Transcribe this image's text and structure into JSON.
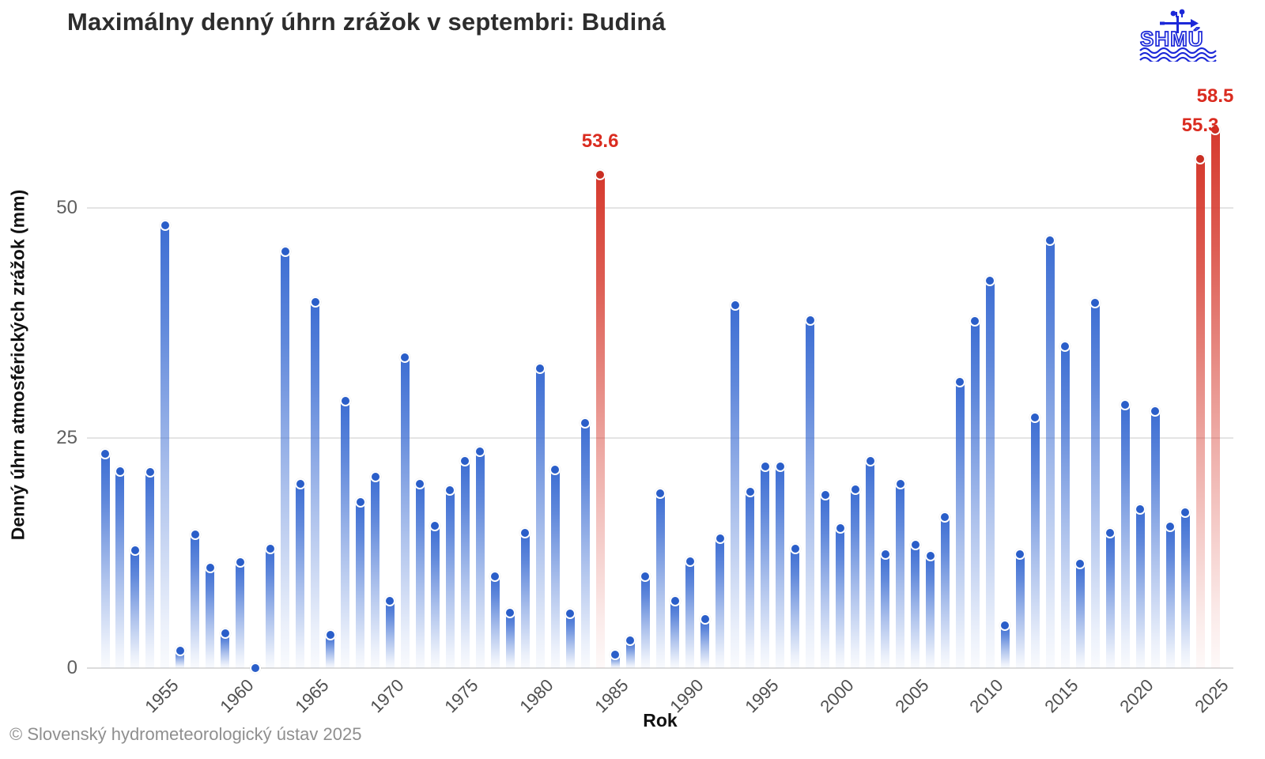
{
  "title": "Maximálny denný úhrn zrážok v septembri: Budiná",
  "footer": "© Slovenský hydrometeorologický ústav 2025",
  "logo": {
    "text": "SHMÚ"
  },
  "y_axis": {
    "title": "Denný úhrn atmosférických zrážok (mm)"
  },
  "x_axis": {
    "title": "Rok"
  },
  "colors": {
    "bar_blue": "#3d6ed3",
    "dot_blue": "#2a5ec9",
    "bar_red": "#d63a2e",
    "dot_red": "#c92e22",
    "annotation_red": "#da2c20",
    "gridline": "#e4e4e4",
    "tick_text": "#4f4f4f",
    "logo_blue": "#1c28d8"
  },
  "chart_data": {
    "type": "bar",
    "title": "Maximálny denný úhrn zrážok v septembri: Budiná",
    "xlabel": "Rok",
    "ylabel": "Denný úhrn atmosférických zrážok (mm)",
    "grid": "horizontal",
    "ylim": [
      0,
      62
    ],
    "yticks": [
      0,
      25,
      50
    ],
    "xticks": [
      1955,
      1960,
      1965,
      1970,
      1975,
      1980,
      1985,
      1990,
      1995,
      2000,
      2005,
      2010,
      2015,
      2020,
      2025
    ],
    "x": [
      1951,
      1952,
      1953,
      1954,
      1955,
      1956,
      1957,
      1958,
      1959,
      1960,
      1961,
      1962,
      1963,
      1964,
      1965,
      1966,
      1967,
      1968,
      1969,
      1970,
      1971,
      1972,
      1973,
      1974,
      1975,
      1976,
      1977,
      1978,
      1979,
      1980,
      1981,
      1982,
      1983,
      1984,
      1985,
      1986,
      1987,
      1988,
      1989,
      1990,
      1991,
      1992,
      1993,
      1994,
      1995,
      1996,
      1997,
      1998,
      1999,
      2000,
      2001,
      2002,
      2003,
      2004,
      2005,
      2006,
      2007,
      2008,
      2009,
      2010,
      2011,
      2012,
      2013,
      2014,
      2015,
      2016,
      2017,
      2018,
      2019,
      2020,
      2021,
      2022,
      2023,
      2024,
      2025
    ],
    "values": [
      23.3,
      21.4,
      12.8,
      21.3,
      48.1,
      1.9,
      14.5,
      10.9,
      3.8,
      11.5,
      0,
      13.0,
      45.3,
      20.0,
      39.8,
      3.6,
      29.0,
      18.0,
      20.8,
      7.3,
      33.8,
      20.0,
      15.5,
      19.3,
      22.5,
      23.5,
      10.0,
      6.0,
      14.7,
      32.6,
      21.6,
      5.9,
      26.6,
      53.6,
      1.5,
      3.0,
      10.0,
      19.0,
      7.3,
      11.6,
      5.3,
      14.1,
      39.4,
      19.2,
      21.9,
      21.9,
      13.0,
      37.8,
      18.8,
      15.2,
      19.4,
      22.5,
      12.4,
      20.0,
      13.4,
      12.2,
      16.4,
      31.1,
      37.7,
      42.1,
      4.6,
      12.4,
      27.2,
      46.5,
      35.0,
      11.3,
      39.7,
      14.7,
      28.6,
      17.3,
      27.9,
      15.4,
      16.9,
      55.3,
      58.5
    ],
    "highlight": [
      {
        "x": 1984,
        "value": 53.6,
        "label": "53.6"
      },
      {
        "x": 2024,
        "value": 55.3,
        "label": "55.3"
      },
      {
        "x": 2025,
        "value": 58.5,
        "label": "58.5"
      }
    ]
  }
}
